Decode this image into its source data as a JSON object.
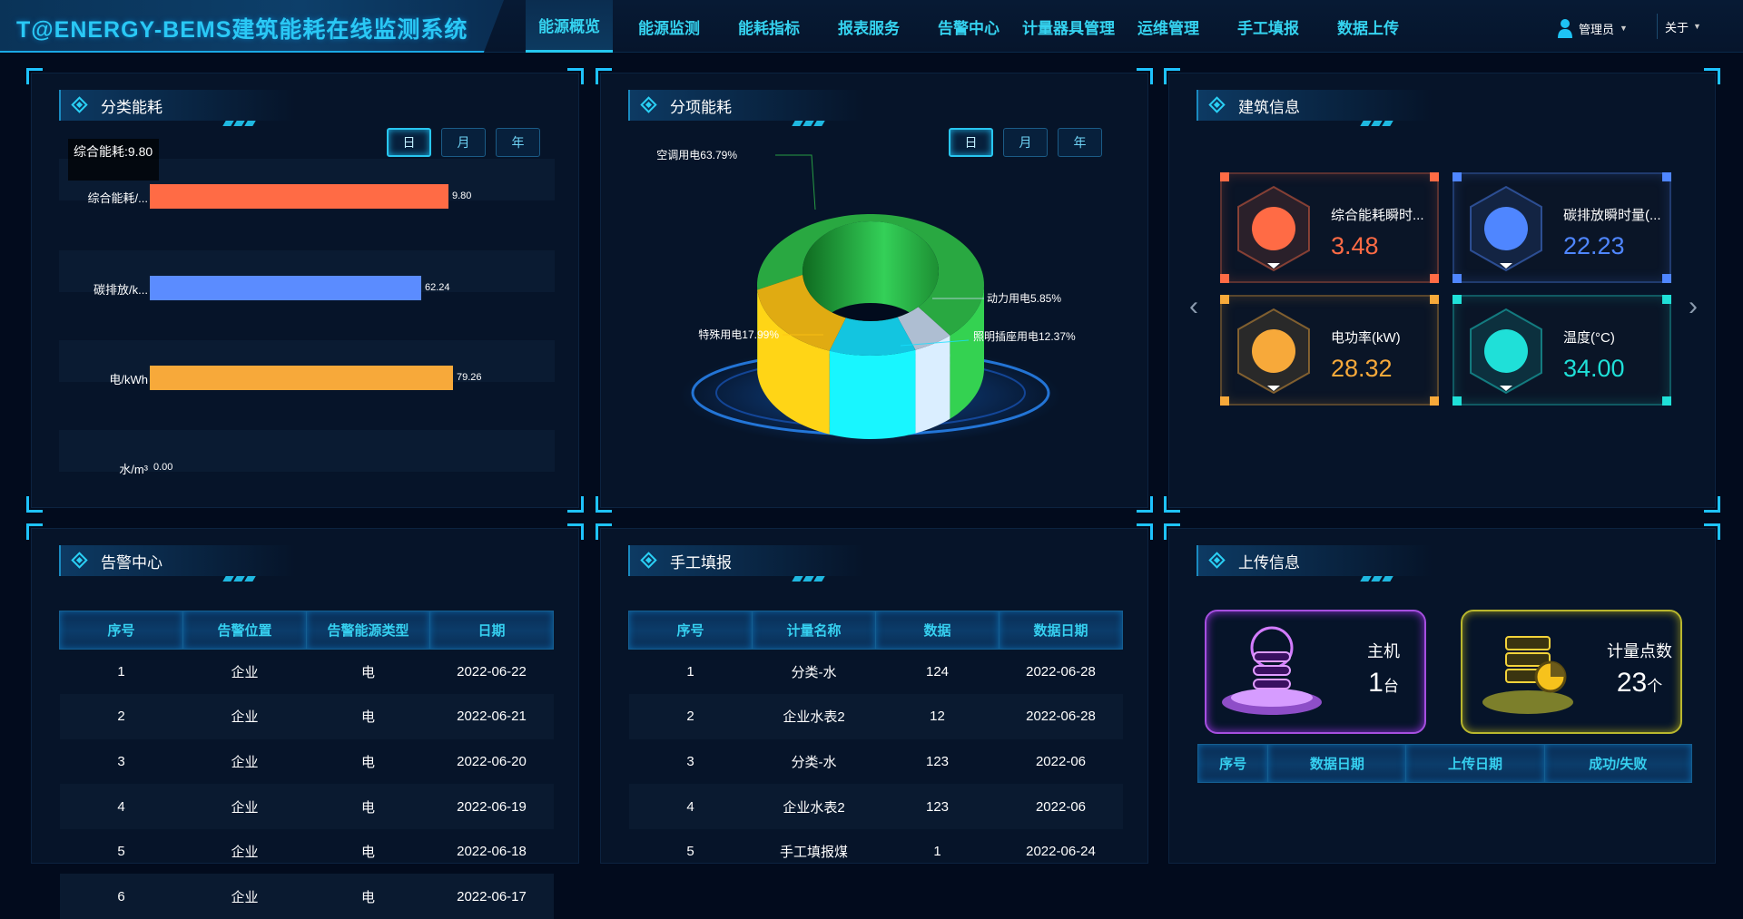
{
  "header": {
    "title": "T@ENERGY-BEMS建筑能耗在线监测系统",
    "nav": [
      "能源概览",
      "能源监测",
      "能耗指标",
      "报表服务",
      "告警中心",
      "计量器具管理",
      "运维管理",
      "手工填报",
      "数据上传"
    ],
    "active_nav": "能源概览",
    "user": "管理员",
    "about": "关于"
  },
  "time_buttons": [
    "日",
    "月",
    "年"
  ],
  "classified": {
    "title": "分类能耗",
    "tooltip": "综合能耗:9.80",
    "chart_data": {
      "type": "bar",
      "orientation": "horizontal",
      "categories": [
        "综合能耗/...",
        "碳排放/k...",
        "电/kWh",
        "水/m³"
      ],
      "values": [
        9.8,
        62.24,
        79.26,
        0.0
      ],
      "value_labels": [
        "9.80",
        "62.24",
        "79.26",
        "0.00"
      ],
      "colors": [
        "#ff6b45",
        "#5b8cff",
        "#f7a93a",
        "#2ad0f5"
      ]
    }
  },
  "itemized": {
    "title": "分项能耗",
    "chart_data": {
      "type": "pie",
      "style": "3d-donut",
      "slices": [
        {
          "label": "空调用电63.79%",
          "value": 63.79,
          "color": "#2fbf4a"
        },
        {
          "label": "动力用电5.85%",
          "value": 5.85,
          "color": "#c6d8ef"
        },
        {
          "label": "照明插座用电12.37%",
          "value": 12.37,
          "color": "#16e0ff"
        },
        {
          "label": "特殊用电17.99%",
          "value": 17.99,
          "color": "#ffc214"
        }
      ]
    }
  },
  "building": {
    "title": "建筑信息",
    "cards": [
      {
        "label": "综合能耗瞬时...",
        "value": "3.48",
        "color": "#ff6b45",
        "icon": "pie-chart-icon"
      },
      {
        "label": "碳排放瞬时量(...",
        "value": "22.23",
        "color": "#4f86ff",
        "icon": "co2-cloud-icon"
      },
      {
        "label": "电功率(kW)",
        "value": "28.32",
        "color": "#f7a93a",
        "icon": "power-icon"
      },
      {
        "label": "温度(°C)",
        "value": "34.00",
        "color": "#1fe0d8",
        "icon": "thermometer-icon"
      }
    ]
  },
  "alarm": {
    "title": "告警中心",
    "columns": [
      "序号",
      "告警位置",
      "告警能源类型",
      "日期"
    ],
    "rows": [
      [
        "1",
        "企业",
        "电",
        "2022-06-22"
      ],
      [
        "2",
        "企业",
        "电",
        "2022-06-21"
      ],
      [
        "3",
        "企业",
        "电",
        "2022-06-20"
      ],
      [
        "4",
        "企业",
        "电",
        "2022-06-19"
      ],
      [
        "5",
        "企业",
        "电",
        "2022-06-18"
      ],
      [
        "6",
        "企业",
        "电",
        "2022-06-17"
      ]
    ]
  },
  "manual": {
    "title": "手工填报",
    "columns": [
      "序号",
      "计量名称",
      "数据",
      "数据日期"
    ],
    "rows": [
      [
        "1",
        "分类-水",
        "124",
        "2022-06-28"
      ],
      [
        "2",
        "企业水表2",
        "12",
        "2022-06-28"
      ],
      [
        "3",
        "分类-水",
        "123",
        "2022-06"
      ],
      [
        "4",
        "企业水表2",
        "123",
        "2022-06"
      ],
      [
        "5",
        "手工填报煤",
        "1",
        "2022-06-24"
      ]
    ]
  },
  "upload": {
    "title": "上传信息",
    "host_label": "主机",
    "host_value": "1",
    "host_unit": "台",
    "points_label": "计量点数",
    "points_value": "23",
    "points_unit": "个",
    "columns": [
      "序号",
      "数据日期",
      "上传日期",
      "成功/失败"
    ]
  }
}
